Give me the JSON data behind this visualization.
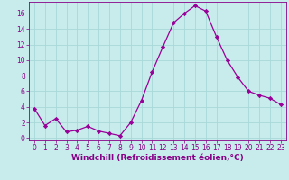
{
  "x": [
    0,
    1,
    2,
    3,
    4,
    5,
    6,
    7,
    8,
    9,
    10,
    11,
    12,
    13,
    14,
    15,
    16,
    17,
    18,
    19,
    20,
    21,
    22,
    23
  ],
  "y": [
    3.8,
    1.6,
    2.5,
    0.8,
    1.0,
    1.5,
    0.9,
    0.6,
    0.3,
    2.0,
    4.8,
    8.5,
    11.7,
    14.8,
    16.0,
    17.0,
    16.3,
    13.0,
    10.0,
    7.8,
    6.0,
    5.5,
    5.1,
    4.3
  ],
  "line_color": "#990099",
  "marker": "D",
  "marker_size": 2.2,
  "bg_color": "#c8ecec",
  "grid_color": "#a8d8d8",
  "xlabel": "Windchill (Refroidissement éolien,°C)",
  "ylim": [
    -0.3,
    17.5
  ],
  "xlim": [
    -0.5,
    23.5
  ],
  "yticks": [
    0,
    2,
    4,
    6,
    8,
    10,
    12,
    14,
    16
  ],
  "xticks": [
    0,
    1,
    2,
    3,
    4,
    5,
    6,
    7,
    8,
    9,
    10,
    11,
    12,
    13,
    14,
    15,
    16,
    17,
    18,
    19,
    20,
    21,
    22,
    23
  ],
  "tick_fontsize": 5.5,
  "xlabel_fontsize": 6.5,
  "label_color": "#880088"
}
